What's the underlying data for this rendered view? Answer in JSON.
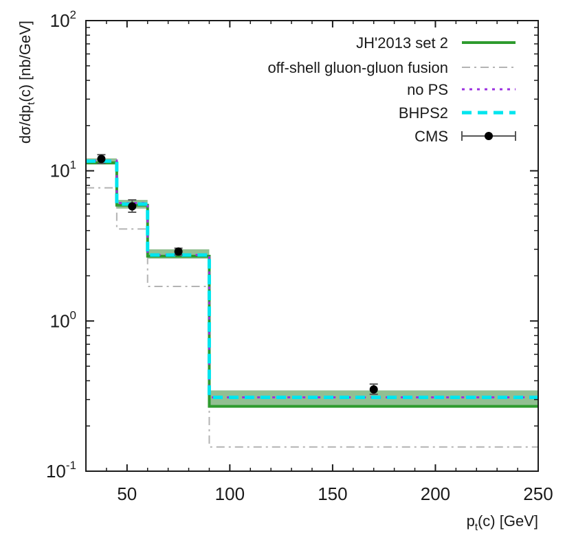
{
  "chart_data": {
    "type": "line",
    "title": "",
    "xlabel": "p",
    "xlabel_sub": "t",
    "xlabel_rest": "(c) [GeV]",
    "ylabel": "dσ/dp",
    "ylabel_sub": "t",
    "ylabel_rest": "(c) [nb/GeV]",
    "xlim": [
      30,
      250
    ],
    "ylim": [
      0.1,
      100
    ],
    "yscale": "log",
    "x_ticks": [
      50,
      100,
      150,
      200,
      250
    ],
    "x_tick_labels": [
      "50",
      "100",
      "150",
      "200",
      "250"
    ],
    "y_ticks": [
      0.1,
      1,
      10,
      100
    ],
    "y_tick_labels": [
      {
        "base": "10",
        "exp": "-1"
      },
      {
        "base": "10",
        "exp": "0"
      },
      {
        "base": "10",
        "exp": "1"
      },
      {
        "base": "10",
        "exp": "2"
      }
    ],
    "grid": false,
    "legend_position": "top-right",
    "bin_edges": [
      30,
      45,
      60,
      90,
      250
    ],
    "band": {
      "series": "JH'2013 set 2",
      "color": "#7fb47f",
      "lower": [
        11.0,
        5.6,
        2.6,
        0.265
      ],
      "upper": [
        12.1,
        6.4,
        3.0,
        0.345
      ]
    },
    "series": [
      {
        "name": "JH'2013 set 2",
        "style": "solid",
        "color": "#2e9b2e",
        "values": [
          11.3,
          5.9,
          2.7,
          0.27
        ]
      },
      {
        "name": "off-shell gluon-gluon fusion",
        "style": "dashdot",
        "color": "#b3b3b3",
        "values": [
          7.7,
          4.1,
          1.7,
          0.145
        ]
      },
      {
        "name": "no PS",
        "style": "dotted",
        "color": "#9b30e0",
        "values": [
          11.7,
          6.1,
          2.75,
          0.31
        ]
      },
      {
        "name": "BHPS2",
        "style": "dashed",
        "color": "#00e5ee",
        "values": [
          11.6,
          6.0,
          2.75,
          0.31
        ]
      }
    ],
    "points": {
      "name": "CMS",
      "color": "#000000",
      "x": [
        37.5,
        52.5,
        75,
        170
      ],
      "y": [
        12.0,
        5.8,
        2.9,
        0.35
      ],
      "yerr_low": [
        11.2,
        5.3,
        2.75,
        0.325
      ],
      "yerr_high": [
        12.8,
        6.4,
        3.05,
        0.38
      ]
    }
  }
}
